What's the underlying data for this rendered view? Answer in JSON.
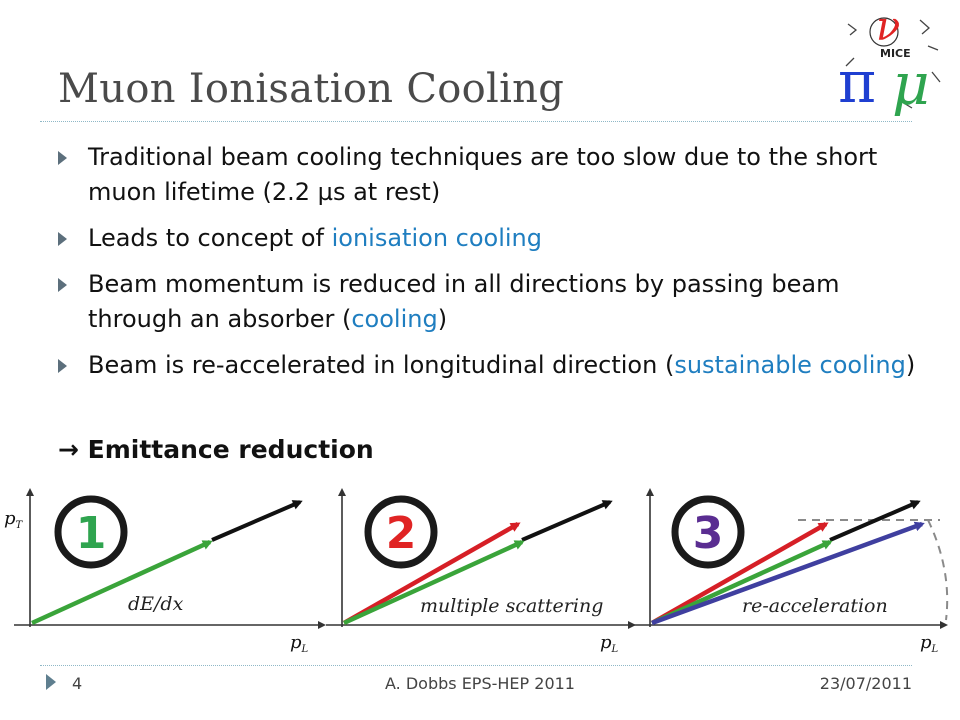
{
  "slide": {
    "title": "Muon Ionisation Cooling",
    "logo": {
      "label": "MICE"
    }
  },
  "bullets": [
    {
      "parts": [
        "Traditional beam cooling techniques are too slow due to the short muon lifetime (2.2 µs at rest)"
      ]
    },
    {
      "parts": [
        "Leads to concept of ",
        "ionisation cooling"
      ]
    },
    {
      "parts": [
        "Beam momentum is reduced in all directions by passing beam through an absorber (",
        "cooling",
        ")"
      ]
    },
    {
      "parts": [
        "Beam is re-accelerated in longitudinal direction (",
        "sustainable cooling",
        ")"
      ]
    }
  ],
  "emittance": "→ Emittance reduction",
  "figure": {
    "panels": [
      {
        "number": "1",
        "ring_color": "#1a1a1a",
        "digit_color": "#2fa44f",
        "caption": "dE/dx"
      },
      {
        "number": "2",
        "ring_color": "#1a1a1a",
        "digit_color": "#e02424",
        "caption": "multiple scattering"
      },
      {
        "number": "3",
        "ring_color": "#1a1a1a",
        "digit_color": "#5a2d91",
        "caption": "re-acceleration"
      }
    ],
    "axis_y": "p",
    "axis_y_sub": "T",
    "axis_x": "p",
    "axis_x_sub": "L",
    "colors": {
      "black": "#111111",
      "green": "#3aa43a",
      "red": "#d61f26",
      "blue": "#3f3f9f",
      "dashed": "#8a8a8a"
    }
  },
  "footer": {
    "page": "4",
    "center": "A. Dobbs EPS-HEP 2011",
    "date": "23/07/2011"
  }
}
